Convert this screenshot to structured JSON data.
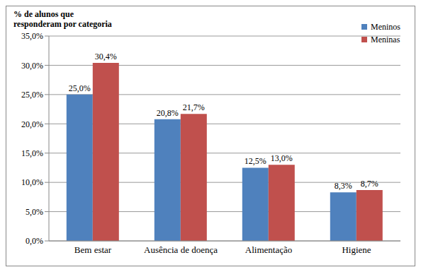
{
  "chart_data": {
    "type": "bar",
    "y_label": "% de alunos que responderam por categoria",
    "categories": [
      "Bem estar",
      "Ausência de doença",
      "Alimentação",
      "Higiene"
    ],
    "series": [
      {
        "name": "Meninos",
        "color": "#4f81bd",
        "values": [
          25.0,
          20.8,
          12.5,
          8.3
        ],
        "value_labels": [
          "25,0%",
          "20,8%",
          "12,5%",
          "8,3%"
        ]
      },
      {
        "name": "Meninas",
        "color": "#c0504d",
        "values": [
          30.4,
          21.7,
          13.0,
          8.7
        ],
        "value_labels": [
          "30,4%",
          "21,7%",
          "13,0%",
          "8,7%"
        ]
      }
    ],
    "ylim": [
      0,
      35
    ],
    "yticks": [
      {
        "value": 0,
        "label": "0,0%"
      },
      {
        "value": 5,
        "label": "5,0%"
      },
      {
        "value": 10,
        "label": "10,0%"
      },
      {
        "value": 15,
        "label": "15,0%"
      },
      {
        "value": 20,
        "label": "20,0%"
      },
      {
        "value": 25,
        "label": "25,0%"
      },
      {
        "value": 30,
        "label": "30,0%"
      },
      {
        "value": 35,
        "label": "35,0%"
      }
    ],
    "grid": true,
    "legend": "upper right",
    "data_labels": true
  }
}
